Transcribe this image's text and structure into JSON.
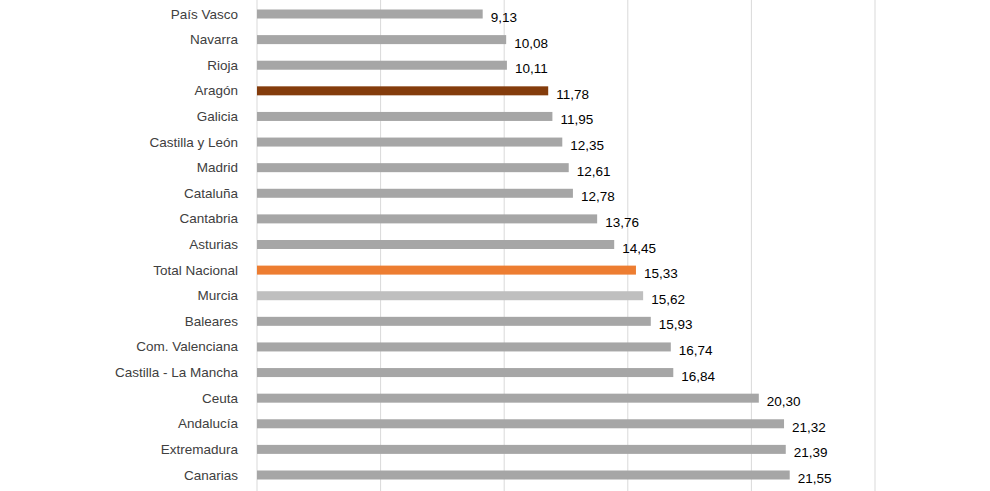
{
  "chart_data": {
    "type": "bar",
    "orientation": "horizontal",
    "categories": [
      "País Vasco",
      "Navarra",
      "Rioja",
      "Aragón",
      "Galicia",
      "Castilla y León",
      "Madrid",
      "Cataluña",
      "Cantabria",
      "Asturias",
      "Total Nacional",
      "Murcia",
      "Baleares",
      "Com. Valenciana",
      "Castilla - La Mancha",
      "Ceuta",
      "Andalucía",
      "Extremadura",
      "Canarias"
    ],
    "values": [
      9.13,
      10.08,
      10.11,
      11.78,
      11.95,
      12.35,
      12.61,
      12.78,
      13.76,
      14.45,
      15.33,
      15.62,
      15.93,
      16.74,
      16.84,
      20.3,
      21.32,
      21.39,
      21.55
    ],
    "value_labels": [
      "9,13",
      "10,08",
      "10,11",
      "11,78",
      "11,95",
      "12,35",
      "12,61",
      "12,78",
      "13,76",
      "14,45",
      "15,33",
      "15,62",
      "15,93",
      "16,74",
      "16,84",
      "20,30",
      "21,32",
      "21,39",
      "21,55"
    ],
    "colors": [
      "#a6a6a6",
      "#a6a6a6",
      "#a6a6a6",
      "#843c0c",
      "#a6a6a6",
      "#a6a6a6",
      "#a6a6a6",
      "#a6a6a6",
      "#a6a6a6",
      "#a6a6a6",
      "#ed7d31",
      "#bfbfbf",
      "#a6a6a6",
      "#a6a6a6",
      "#a6a6a6",
      "#a6a6a6",
      "#a6a6a6",
      "#a6a6a6",
      "#a6a6a6"
    ],
    "xlim": [
      0,
      25
    ],
    "xticks": [
      0,
      5,
      10,
      15,
      20,
      25
    ],
    "grid": true,
    "data_labels": true,
    "tick_labels": false
  }
}
